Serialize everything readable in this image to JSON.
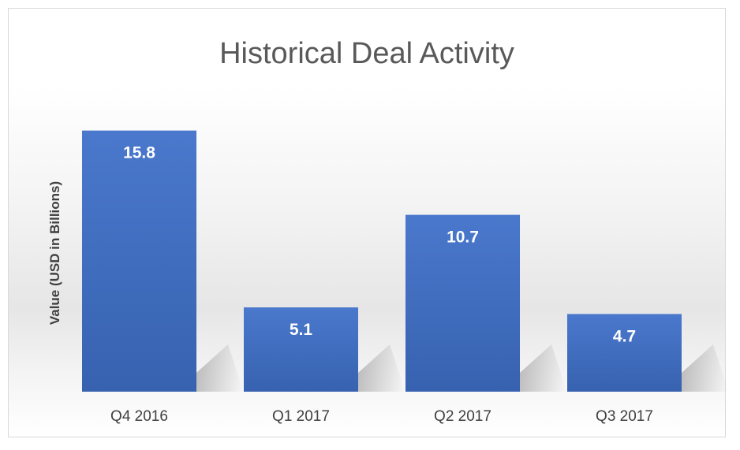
{
  "chart_data": {
    "type": "bar",
    "title": "Historical Deal Activity",
    "xlabel": "",
    "ylabel": "Value (USD in Billions)",
    "categories": [
      "Q4 2016",
      "Q1 2017",
      "Q2 2017",
      "Q3 2017"
    ],
    "values": [
      15.8,
      5.1,
      10.7,
      4.7
    ],
    "data_labels": [
      "15.8",
      "5.1",
      "10.7",
      "4.7"
    ],
    "ylim": [
      0,
      17.5
    ],
    "grid": false,
    "legend": "none",
    "bar_color": "#4472c4"
  }
}
